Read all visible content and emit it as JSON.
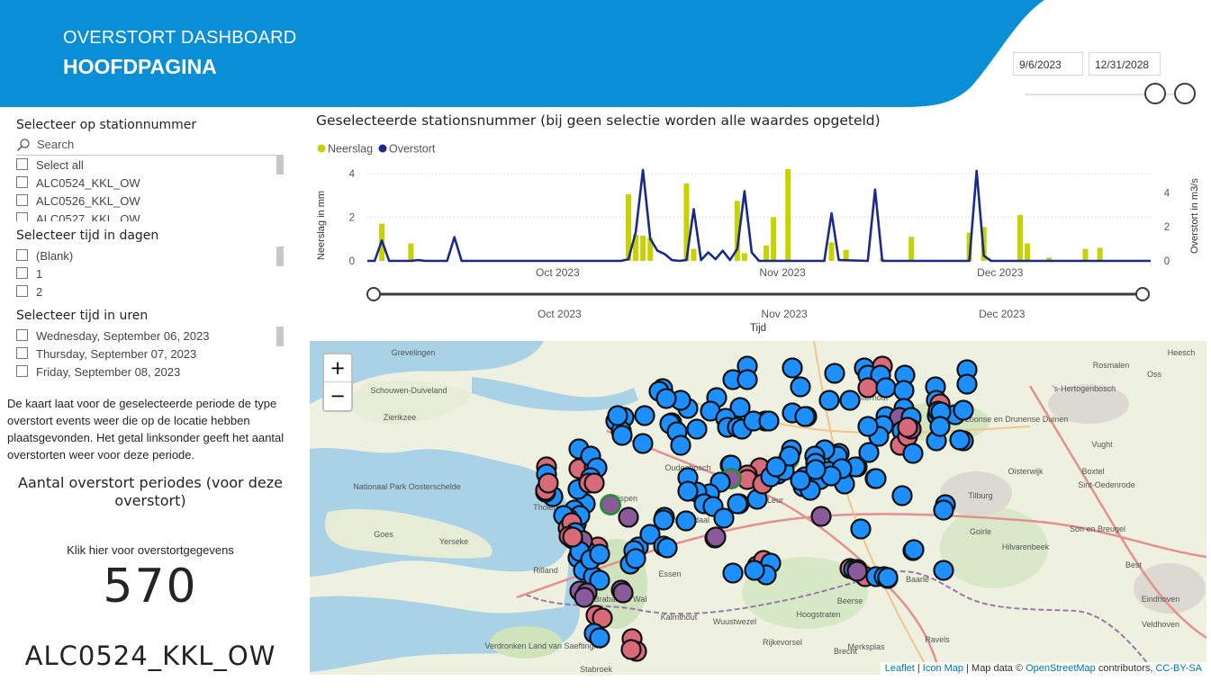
{
  "header": {
    "title": "OVERSTORT DASHBOARD",
    "subtitle": "HOOFDPAGINA",
    "date_start": "9/6/2023",
    "date_end": "12/31/2028",
    "brand_color": "#0a8fd6"
  },
  "slicers": {
    "station": {
      "title": "Selecteer op stationnummer",
      "search_placeholder": "Search",
      "items": [
        "Select all",
        "ALC0524_KKL_OW",
        "ALC0526_KKL_OW",
        "ALC0527_KKL_OW"
      ]
    },
    "days": {
      "title": "Selecteer tijd in dagen",
      "items": [
        "(Blank)",
        "1",
        "2"
      ]
    },
    "hours": {
      "title": "Selecteer tijd in uren",
      "items": [
        "Wednesday, September 06, 2023",
        "Thursday, September 07, 2023",
        "Friday, September 08, 2023"
      ]
    }
  },
  "description": "De kaart laat voor de geselecteerde periode de type overstort events weer die op de locatie hebben plaatsgevonden. Het getal linksonder geeft het aantal overstorten weer voor deze periode.",
  "count_card": {
    "title": "Aantal overstort periodes (voor deze overstort)",
    "link_text": "Klik hier voor overstortgegevens",
    "value": "570",
    "station": "ALC0524_KKL_OW"
  },
  "chart_title": "Geselecteerde stationsnummer (bij geen selectie worden alle waardes opgeteld)",
  "chart_data": {
    "type": "bar+line",
    "x_start": "2023-09-06",
    "x_end": "2023-12-23",
    "xticks": [
      "Oct 2023",
      "Nov 2023",
      "Dec 2023"
    ],
    "xticks_dates": [
      "2023-10-01",
      "2023-11-01",
      "2023-12-01"
    ],
    "xlabel": "Tijd",
    "ylabel_left": "Neerslag in mm",
    "ylabel_right": "Overstort in m3/s",
    "ylim_left": [
      0,
      4.2
    ],
    "ylim_right": [
      0,
      5.4
    ],
    "yticks_left": [
      0,
      2,
      4
    ],
    "yticks_right": [
      0,
      2,
      4
    ],
    "series": [
      {
        "name": "Neerslag",
        "color": "#c6d300",
        "type": "bar",
        "points": [
          {
            "date": "2023-09-08",
            "value": 1.7
          },
          {
            "date": "2023-09-12",
            "value": 0.8
          },
          {
            "date": "2023-10-12",
            "value": 3.05
          },
          {
            "date": "2023-10-13",
            "value": 1.2
          },
          {
            "date": "2023-10-14",
            "value": 1.15
          },
          {
            "date": "2023-10-15",
            "value": 1.05
          },
          {
            "date": "2023-10-20",
            "value": 3.55
          },
          {
            "date": "2023-10-21",
            "value": 0.55
          },
          {
            "date": "2023-10-27",
            "value": 2.75
          },
          {
            "date": "2023-10-28",
            "value": 0.35
          },
          {
            "date": "2023-10-31",
            "value": 0.7
          },
          {
            "date": "2023-11-01",
            "value": 2.0
          },
          {
            "date": "2023-11-03",
            "value": 4.2
          },
          {
            "date": "2023-11-09",
            "value": 0.85
          },
          {
            "date": "2023-11-11",
            "value": 0.5
          },
          {
            "date": "2023-11-16",
            "value": 0.1
          },
          {
            "date": "2023-11-20",
            "value": 1.1
          },
          {
            "date": "2023-11-28",
            "value": 1.3
          },
          {
            "date": "2023-11-30",
            "value": 1.55
          },
          {
            "date": "2023-12-05",
            "value": 2.1
          },
          {
            "date": "2023-12-06",
            "value": 0.8
          },
          {
            "date": "2023-12-09",
            "value": 0.15
          },
          {
            "date": "2023-12-14",
            "value": 0.55
          },
          {
            "date": "2023-12-16",
            "value": 0.6
          }
        ]
      },
      {
        "name": "Overstort",
        "color": "#1a2a8c",
        "type": "line",
        "points": [
          {
            "date": "2023-09-06",
            "value": 0
          },
          {
            "date": "2023-09-07",
            "value": 0
          },
          {
            "date": "2023-09-08",
            "value": 1.2
          },
          {
            "date": "2023-09-09",
            "value": 0
          },
          {
            "date": "2023-09-12",
            "value": 0
          },
          {
            "date": "2023-09-13",
            "value": 0.05
          },
          {
            "date": "2023-09-14",
            "value": 0
          },
          {
            "date": "2023-09-17",
            "value": 0
          },
          {
            "date": "2023-09-18",
            "value": 1.4
          },
          {
            "date": "2023-09-19",
            "value": 0
          },
          {
            "date": "2023-10-11",
            "value": 0
          },
          {
            "date": "2023-10-12",
            "value": 0.1
          },
          {
            "date": "2023-10-13",
            "value": 1.7
          },
          {
            "date": "2023-10-14",
            "value": 5.35
          },
          {
            "date": "2023-10-15",
            "value": 1.3
          },
          {
            "date": "2023-10-16",
            "value": 0.6
          },
          {
            "date": "2023-10-17",
            "value": 0.4
          },
          {
            "date": "2023-10-18",
            "value": 0.05
          },
          {
            "date": "2023-10-19",
            "value": 0
          },
          {
            "date": "2023-10-20",
            "value": 0.05
          },
          {
            "date": "2023-10-21",
            "value": 3.05
          },
          {
            "date": "2023-10-22",
            "value": 0.05
          },
          {
            "date": "2023-10-23",
            "value": 0.5
          },
          {
            "date": "2023-10-24",
            "value": 0.1
          },
          {
            "date": "2023-10-25",
            "value": 0.6
          },
          {
            "date": "2023-10-26",
            "value": 0.05
          },
          {
            "date": "2023-10-27",
            "value": 0.7
          },
          {
            "date": "2023-10-28",
            "value": 4.1
          },
          {
            "date": "2023-10-29",
            "value": 0.5
          },
          {
            "date": "2023-10-30",
            "value": 0
          },
          {
            "date": "2023-11-08",
            "value": 0
          },
          {
            "date": "2023-11-09",
            "value": 2.8
          },
          {
            "date": "2023-11-10",
            "value": 0.05
          },
          {
            "date": "2023-11-14",
            "value": 0
          },
          {
            "date": "2023-11-15",
            "value": 4.2
          },
          {
            "date": "2023-11-16",
            "value": 0
          },
          {
            "date": "2023-11-28",
            "value": 0
          },
          {
            "date": "2023-11-29",
            "value": 5.3
          },
          {
            "date": "2023-11-30",
            "value": 0.3
          },
          {
            "date": "2023-12-01",
            "value": 0
          },
          {
            "date": "2023-12-23",
            "value": 0
          }
        ]
      }
    ],
    "legend": [
      "Neerslag",
      "Overstort"
    ],
    "legend_position": "top-left",
    "range_slider": {
      "ticks": [
        "Oct 2023",
        "Nov 2023",
        "Dec 2023"
      ],
      "xlabel": "Tijd"
    }
  },
  "map": {
    "place_labels": [
      "Grevelingen",
      "Schouwen-Duiveland",
      "Zierikzee",
      "Nationaal Park Oosterschelde",
      "Tholen",
      "Goes",
      "Yerseke",
      "Rilland",
      "Essen",
      "Roosendaal",
      "Oudenbosch",
      "Etten-Leur",
      "Rijen",
      "Tilburg",
      "Oisterwijk",
      "Goirle",
      "Hilvarenbeek",
      "Eindhoven",
      "Veldhoven",
      "Oss",
      "Rosmalen",
      "'s-Hertogenbosch",
      "Heesch",
      "Vught",
      "Boxtel",
      "Sint-Oedenrode",
      "Son en Breugel",
      "Best",
      "Oosterhout",
      "Kalmthout",
      "Wuustwezel",
      "Hoogstraten",
      "Merksplas",
      "Ravels",
      "Brecht",
      "Stabroek",
      "Brabantse Wal",
      "Verdronken Land van Saeftinghe",
      "De Loonse en Drunense Duinen",
      "Rijkevorsel",
      "Beerse",
      "Baarle",
      "Nispen"
    ],
    "zoom_in": "+",
    "zoom_out": "−",
    "attribution": {
      "leaflet": "Leaflet",
      "icon_map": "Icon Map",
      "data_prefix": "Map data ©",
      "osm": "OpenStreetMap",
      "contributors": "contributors,",
      "license": "CC-BY-SA"
    },
    "marker_colors": {
      "blue": "#1e8fff",
      "red": "#d96a7a",
      "purple": "#8a5a9a",
      "green_ring": "#2e8b3a"
    }
  }
}
